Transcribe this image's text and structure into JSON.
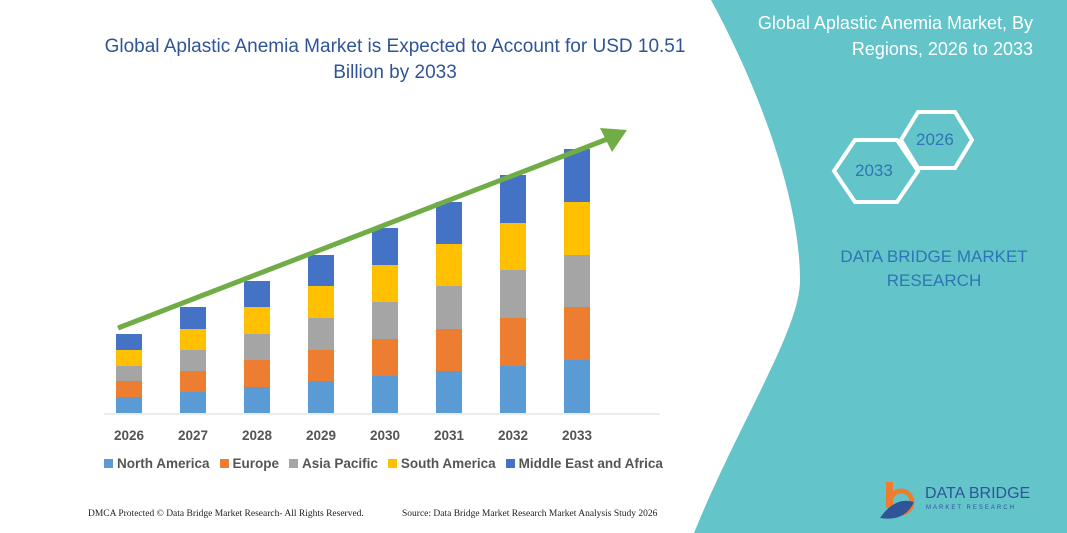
{
  "header": {
    "title": "Global Aplastic Anemia Market is Expected to Account for USD 10.51 Billion by 2033"
  },
  "side_panel": {
    "title": "Global Aplastic Anemia Market, By Regions, 2026 to 2033",
    "hex_start": "2026",
    "hex_end": "2033",
    "brand": "DATA BRIDGE MARKET RESEARCH",
    "panel_color": "#63c5c9"
  },
  "footer": {
    "copyright": "DMCA Protected © Data Bridge Market Research- All Rights Reserved.",
    "source": "Source: Data Bridge Market Research Market Analysis Study 2026",
    "logo_text": "DATA BRIDGE",
    "logo_sub": "MARKET RESEARCH"
  },
  "chart_data": {
    "type": "bar",
    "stacked": true,
    "title": "Global Aplastic Anemia Market is Expected to Account for USD 10.51 Billion by 2033",
    "categories": [
      "2026",
      "2027",
      "2028",
      "2029",
      "2030",
      "2031",
      "2032",
      "2033"
    ],
    "series": [
      {
        "name": "North America",
        "color": "#5b9bd5",
        "values": [
          16,
          21,
          26,
          32,
          37,
          42,
          47,
          53
        ]
      },
      {
        "name": "Europe",
        "color": "#ed7d31",
        "values": [
          16,
          21,
          27,
          31,
          37,
          42,
          48,
          53
        ]
      },
      {
        "name": "Asia Pacific",
        "color": "#a5a5a5",
        "values": [
          15,
          21,
          26,
          32,
          37,
          43,
          48,
          52
        ]
      },
      {
        "name": "South America",
        "color": "#ffc000",
        "values": [
          16,
          21,
          27,
          32,
          37,
          42,
          47,
          53
        ]
      },
      {
        "name": "Middle East and Africa",
        "color": "#4472c4",
        "values": [
          16,
          22,
          26,
          31,
          37,
          42,
          48,
          53
        ]
      }
    ],
    "legend_position": "bottom",
    "y_axis_shown": false,
    "grid": false,
    "trend_arrow_color": "#70ad47"
  }
}
